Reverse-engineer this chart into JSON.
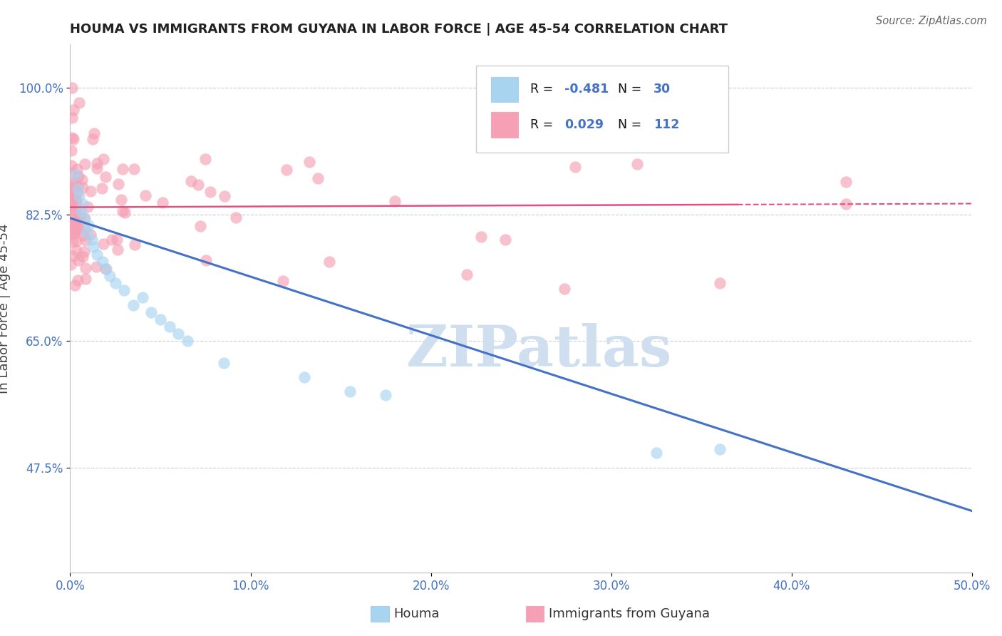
{
  "title": "HOUMA VS IMMIGRANTS FROM GUYANA IN LABOR FORCE | AGE 45-54 CORRELATION CHART",
  "source_text": "Source: ZipAtlas.com",
  "ylabel": "In Labor Force | Age 45-54",
  "xlim": [
    0.0,
    0.5
  ],
  "ylim": [
    0.33,
    1.06
  ],
  "xticks": [
    0.0,
    0.1,
    0.2,
    0.3,
    0.4,
    0.5
  ],
  "xticklabels": [
    "0.0%",
    "10.0%",
    "20.0%",
    "30.0%",
    "40.0%",
    "50.0%"
  ],
  "yticks": [
    0.475,
    0.65,
    0.825,
    1.0
  ],
  "yticklabels": [
    "47.5%",
    "65.0%",
    "82.5%",
    "100.0%"
  ],
  "houma_R": -0.481,
  "houma_N": 30,
  "guyana_R": 0.029,
  "guyana_N": 112,
  "houma_color": "#A8D4F0",
  "guyana_color": "#F5A0B5",
  "houma_line_color": "#4472C4",
  "guyana_line_color": "#E05080",
  "watermark": "ZIPatlas",
  "watermark_color": "#D0DFF0",
  "bg_color": "#FFFFFF",
  "grid_color": "#CCCCCC",
  "title_color": "#222222",
  "axis_label_color": "#444444",
  "tick_label_color": "#4472C4",
  "legend_text_color": "#111111",
  "legend_R_color": "#4472C4",
  "source_color": "#666666"
}
